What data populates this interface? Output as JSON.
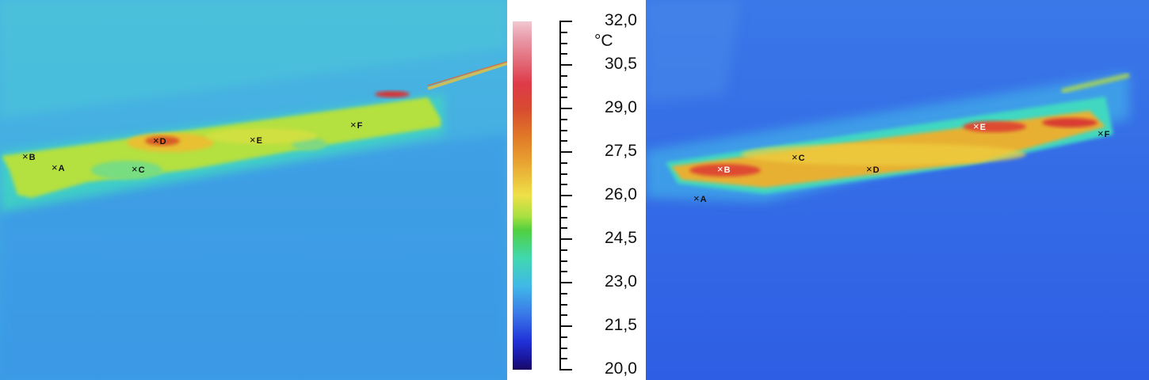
{
  "thermal_left": {
    "markers": [
      {
        "label": "A"
      },
      {
        "label": "B"
      },
      {
        "label": "C"
      },
      {
        "label": "D"
      },
      {
        "label": "E"
      },
      {
        "label": "F"
      }
    ]
  },
  "scale": {
    "unit": "°C",
    "ticks": [
      "32,0",
      "30,5",
      "29,0",
      "27,5",
      "26,0",
      "24,5",
      "23,0",
      "21,5",
      "20,0"
    ],
    "colors": {
      "max": "#f2c8d0",
      "hot": "#de3a48",
      "warm": "#e8a030",
      "mid": "#eee048",
      "green": "#50d040",
      "cyan": "#40d8b0",
      "cool": "#40b8e8",
      "blue": "#2030d8",
      "min": "#1a0a60"
    }
  },
  "thermal_right": {
    "markers": [
      {
        "label": "A"
      },
      {
        "label": "B"
      },
      {
        "label": "C"
      },
      {
        "label": "D"
      },
      {
        "label": "E"
      },
      {
        "label": "F"
      }
    ]
  }
}
